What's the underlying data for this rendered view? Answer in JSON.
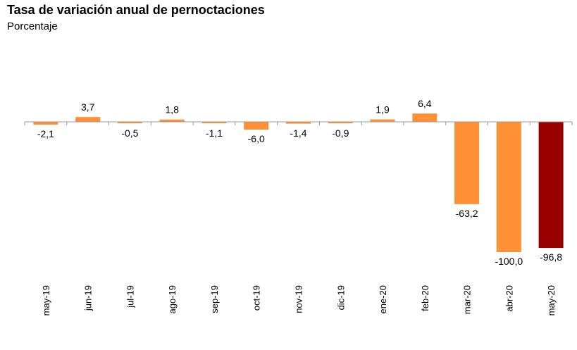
{
  "chart_data": {
    "type": "bar",
    "title": "Tasa de variación anual de pernoctaciones",
    "subtitle": "Porcentaje",
    "categories": [
      "may-19",
      "jun-19",
      "jul-19",
      "ago-19",
      "sep-19",
      "oct-19",
      "nov-19",
      "dic-19",
      "ene-20",
      "feb-20",
      "mar-20",
      "abr-20",
      "may-20"
    ],
    "values": [
      -2.1,
      3.7,
      -0.5,
      1.8,
      -1.1,
      -6.0,
      -1.4,
      -0.9,
      1.9,
      6.4,
      -63.2,
      -100.0,
      -96.8
    ],
    "value_labels": [
      "-2,1",
      "3,7",
      "-0,5",
      "1,8",
      "-1,1",
      "-6,0",
      "-1,4",
      "-0,9",
      "1,9",
      "6,4",
      "-63,2",
      "-100,0",
      "-96,8"
    ],
    "xlabel": "",
    "ylabel": "",
    "ylim": [
      -100,
      10
    ],
    "grid": false,
    "colors": {
      "default": "#FF9035",
      "highlight": "#990000",
      "axis": "#9a9a9a"
    },
    "highlight_index": 12
  }
}
